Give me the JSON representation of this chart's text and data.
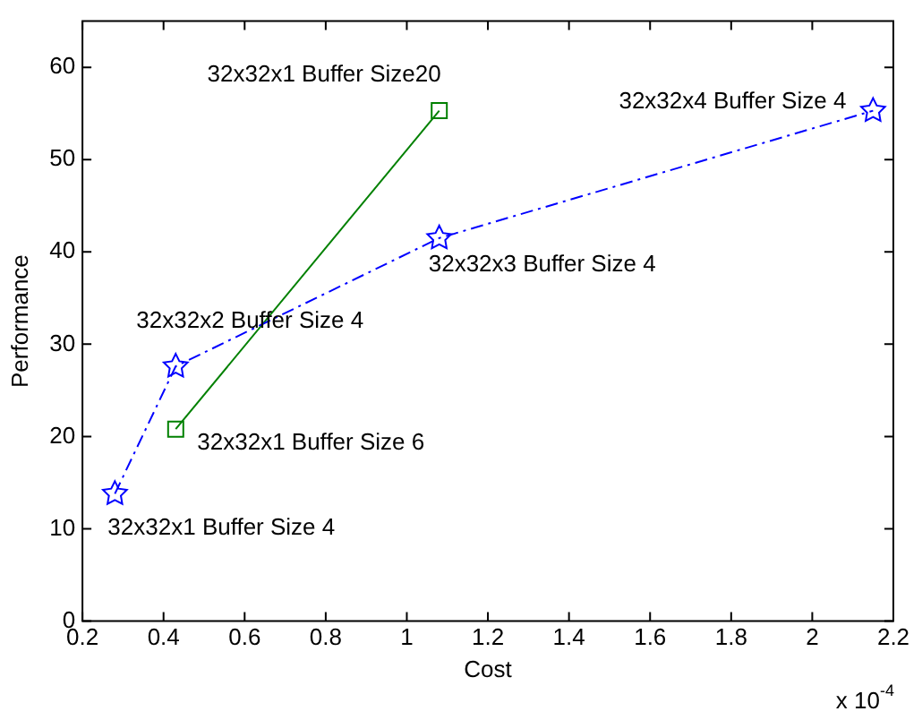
{
  "chart_data": {
    "type": "line",
    "xlabel": "Cost",
    "ylabel": "Performance",
    "xlim": [
      0.2,
      2.2
    ],
    "xticks": [
      0.2,
      0.4,
      0.6,
      0.8,
      1,
      1.2,
      1.4,
      1.6,
      1.8,
      2,
      2.2
    ],
    "ylim": [
      0,
      65
    ],
    "yticks": [
      0,
      10,
      20,
      30,
      40,
      50,
      60
    ],
    "grid": false,
    "legend": false,
    "series": [
      {
        "color": "#0000ff",
        "marker": "star",
        "line_style": "dashed",
        "x": [
          0.28,
          0.43,
          1.08,
          2.15
        ],
        "values": [
          13.8,
          27.6,
          41.5,
          55.3
        ]
      },
      {
        "color": "#008000",
        "marker": "square",
        "line_style": "solid",
        "x": [
          0.43,
          1.08
        ],
        "values": [
          20.8,
          55.3
        ]
      }
    ],
    "annotations": [
      {
        "text": "32x32x1 Buffer Size 4",
        "x": 0.28,
        "y": 13.8
      },
      {
        "text": "32x32x2 Buffer Size 4",
        "x": 0.43,
        "y": 27.6
      },
      {
        "text": "32x32x1 Buffer Size 6",
        "x": 0.43,
        "y": 20.8
      },
      {
        "text": "32x32x1 Buffer Size20",
        "x": 1.08,
        "y": 55.3
      },
      {
        "text": "32x32x3 Buffer Size 4",
        "x": 1.08,
        "y": 41.5
      },
      {
        "text": "32x32x4 Buffer Size 4",
        "x": 2.15,
        "y": 55.3
      },
      "x 10$^{-4}$"
    ]
  }
}
